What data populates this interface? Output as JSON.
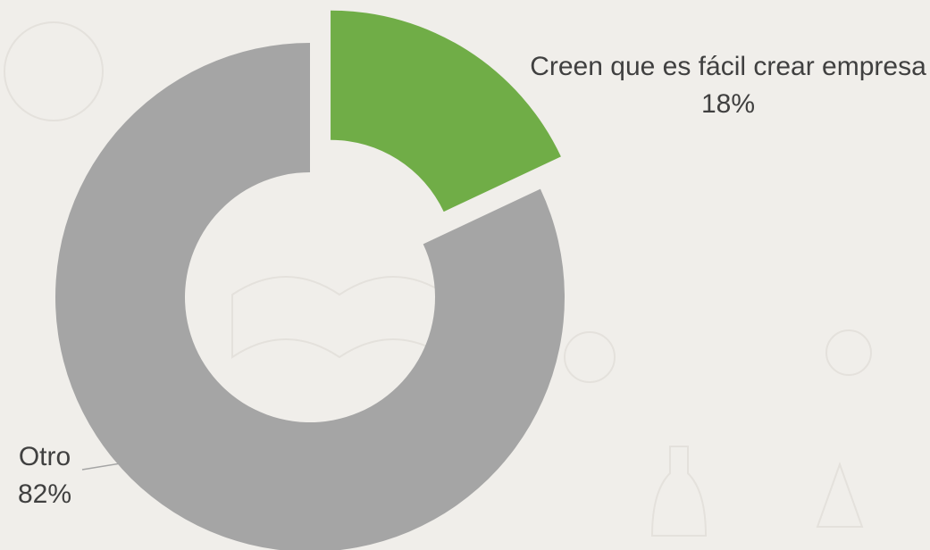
{
  "chart_data": {
    "type": "donut",
    "categories": [
      "Creen que es fácil crear empresa",
      "Otro"
    ],
    "values": [
      18,
      82
    ],
    "value_labels": [
      "18%",
      "82%"
    ],
    "colors": [
      "#70ad47",
      "#a5a5a5"
    ]
  }
}
